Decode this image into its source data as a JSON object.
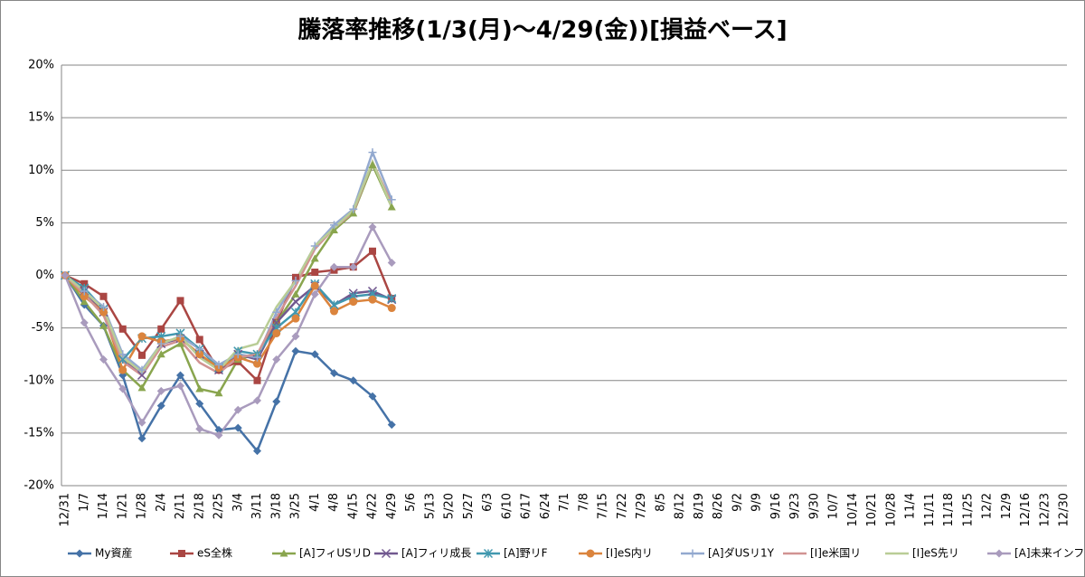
{
  "chart_data": {
    "type": "line",
    "title": "騰落率推移(1/3(月)～4/29(金))[損益ベース]",
    "categories": [
      "12/31",
      "1/7",
      "1/14",
      "1/21",
      "1/28",
      "2/4",
      "2/11",
      "2/18",
      "2/25",
      "3/4",
      "3/11",
      "3/18",
      "3/25",
      "4/1",
      "4/8",
      "4/15",
      "4/22",
      "4/29",
      "5/6",
      "5/13",
      "5/20",
      "5/27",
      "6/3",
      "6/10",
      "6/17",
      "6/24",
      "7/1",
      "7/8",
      "7/15",
      "7/22",
      "7/29",
      "8/5",
      "8/12",
      "8/19",
      "8/26",
      "9/2",
      "9/9",
      "9/16",
      "9/23",
      "9/30",
      "10/7",
      "10/14",
      "10/21",
      "10/28",
      "11/4",
      "11/11",
      "11/18",
      "11/25",
      "12/2",
      "12/9",
      "12/16",
      "12/23",
      "12/30"
    ],
    "ylim": [
      -20,
      20
    ],
    "yticks": [
      {
        "value": -20,
        "label": "-20%"
      },
      {
        "value": -15,
        "label": "-15%"
      },
      {
        "value": -10,
        "label": "-10%"
      },
      {
        "value": -5,
        "label": "-5%"
      },
      {
        "value": 0,
        "label": "0%"
      },
      {
        "value": 5,
        "label": "5%"
      },
      {
        "value": 10,
        "label": "10%"
      },
      {
        "value": 15,
        "label": "15%"
      },
      {
        "value": 20,
        "label": "20%"
      }
    ],
    "grid": true,
    "legend": "bottom",
    "series": [
      {
        "name": "My資産",
        "color": "#4572a7",
        "marker": "diamond",
        "values": [
          0,
          -2.8,
          -4.8,
          -9.5,
          -15.5,
          -12.4,
          -9.5,
          -12.2,
          -14.7,
          -14.5,
          -16.7,
          -12,
          -7.2,
          -7.5,
          -9.3,
          -10,
          -11.5,
          -14.2,
          null,
          null,
          null,
          null,
          null,
          null,
          null,
          null,
          null,
          null,
          null,
          null,
          null,
          null,
          null,
          null,
          null,
          null,
          null,
          null,
          null,
          null,
          null,
          null,
          null,
          null,
          null,
          null,
          null,
          null,
          null,
          null,
          null,
          null,
          null
        ]
      },
      {
        "name": "eS全株",
        "color": "#aa4643",
        "marker": "square",
        "values": [
          0,
          -0.8,
          -2,
          -5.1,
          -7.6,
          -5.1,
          -2.4,
          -6.1,
          -9,
          -8.2,
          -10,
          -4.5,
          -0.2,
          0.3,
          0.5,
          0.8,
          2.3,
          -2.2,
          null,
          null,
          null,
          null,
          null,
          null,
          null,
          null,
          null,
          null,
          null,
          null,
          null,
          null,
          null,
          null,
          null,
          null,
          null,
          null,
          null,
          null,
          null,
          null,
          null,
          null,
          null,
          null,
          null,
          null,
          null,
          null,
          null,
          null,
          null
        ]
      },
      {
        "name": "[A]フィUSリD",
        "color": "#89a54e",
        "marker": "triangle",
        "values": [
          0,
          -2.5,
          -4.8,
          -9,
          -10.7,
          -7.5,
          -6.5,
          -10.8,
          -11.2,
          -8,
          -7.5,
          -4.5,
          -1.8,
          1.6,
          4.3,
          5.9,
          10.5,
          6.5,
          null,
          null,
          null,
          null,
          null,
          null,
          null,
          null,
          null,
          null,
          null,
          null,
          null,
          null,
          null,
          null,
          null,
          null,
          null,
          null,
          null,
          null,
          null,
          null,
          null,
          null,
          null,
          null,
          null,
          null,
          null,
          null,
          null,
          null,
          null
        ]
      },
      {
        "name": "[A]フィリ成長",
        "color": "#71588f",
        "marker": "x",
        "values": [
          0,
          -1.5,
          -3.5,
          -8,
          -9.5,
          -6.5,
          -6,
          -7.5,
          -9,
          -7.5,
          -8,
          -4.5,
          -2.5,
          -1,
          -2.8,
          -1.7,
          -1.5,
          -2.3,
          null,
          null,
          null,
          null,
          null,
          null,
          null,
          null,
          null,
          null,
          null,
          null,
          null,
          null,
          null,
          null,
          null,
          null,
          null,
          null,
          null,
          null,
          null,
          null,
          null,
          null,
          null,
          null,
          null,
          null,
          null,
          null,
          null,
          null,
          null
        ]
      },
      {
        "name": "[A]野リF",
        "color": "#4198af",
        "marker": "star",
        "values": [
          0,
          -1.2,
          -3.2,
          -8,
          -6,
          -5.8,
          -5.5,
          -7,
          -8.8,
          -7.2,
          -7.5,
          -5,
          -3.5,
          -0.8,
          -2.8,
          -2,
          -1.8,
          -2.2,
          null,
          null,
          null,
          null,
          null,
          null,
          null,
          null,
          null,
          null,
          null,
          null,
          null,
          null,
          null,
          null,
          null,
          null,
          null,
          null,
          null,
          null,
          null,
          null,
          null,
          null,
          null,
          null,
          null,
          null,
          null,
          null,
          null,
          null,
          null
        ]
      },
      {
        "name": "[I]eS内リ",
        "color": "#db843d",
        "marker": "circle",
        "values": [
          0,
          -2,
          -3.5,
          -9,
          -5.8,
          -6.3,
          -6,
          -7.5,
          -8.8,
          -7.8,
          -8.4,
          -5.5,
          -4.1,
          -1,
          -3.4,
          -2.5,
          -2.3,
          -3.1,
          null,
          null,
          null,
          null,
          null,
          null,
          null,
          null,
          null,
          null,
          null,
          null,
          null,
          null,
          null,
          null,
          null,
          null,
          null,
          null,
          null,
          null,
          null,
          null,
          null,
          null,
          null,
          null,
          null,
          null,
          null,
          null,
          null,
          null,
          null
        ]
      },
      {
        "name": "[A]ダUSリ1Y",
        "color": "#93a9cf",
        "marker": "plus",
        "values": [
          0,
          -1.5,
          -3,
          -7.5,
          -9,
          -6.5,
          -5.8,
          -7,
          -8.5,
          -7.5,
          -7.8,
          -3.5,
          -0.5,
          2.8,
          4.8,
          6.3,
          11.7,
          7.2,
          null,
          null,
          null,
          null,
          null,
          null,
          null,
          null,
          null,
          null,
          null,
          null,
          null,
          null,
          null,
          null,
          null,
          null,
          null,
          null,
          null,
          null,
          null,
          null,
          null,
          null,
          null,
          null,
          null,
          null,
          null,
          null,
          null,
          null,
          null
        ]
      },
      {
        "name": "[I]e米国リ",
        "color": "#d19392",
        "marker": "none",
        "values": [
          0,
          -1.8,
          -3.8,
          -8.2,
          -9.5,
          -6.8,
          -6.2,
          -8.3,
          -9.3,
          -7.8,
          -7.5,
          -4,
          -1,
          2.5,
          4.5,
          6,
          10.8,
          6.8,
          null,
          null,
          null,
          null,
          null,
          null,
          null,
          null,
          null,
          null,
          null,
          null,
          null,
          null,
          null,
          null,
          null,
          null,
          null,
          null,
          null,
          null,
          null,
          null,
          null,
          null,
          null,
          null,
          null,
          null,
          null,
          null,
          null,
          null,
          null
        ]
      },
      {
        "name": "[I]eS先リ",
        "color": "#b9cd96",
        "marker": "none",
        "values": [
          0,
          -1.5,
          -3.2,
          -7.8,
          -9.2,
          -6.5,
          -5.8,
          -7.8,
          -9,
          -7,
          -6.5,
          -3,
          -0.5,
          2.8,
          4.5,
          6.2,
          10.8,
          6.5,
          null,
          null,
          null,
          null,
          null,
          null,
          null,
          null,
          null,
          null,
          null,
          null,
          null,
          null,
          null,
          null,
          null,
          null,
          null,
          null,
          null,
          null,
          null,
          null,
          null,
          null,
          null,
          null,
          null,
          null,
          null,
          null,
          null,
          null,
          null
        ]
      },
      {
        "name": "[A]未来インフラ",
        "color": "#a99bbd",
        "marker": "diamond",
        "values": [
          0,
          -4.5,
          -8,
          -10.8,
          -14,
          -11,
          -10.5,
          -14.6,
          -15.2,
          -12.8,
          -11.9,
          -8,
          -5.8,
          -1.8,
          0.8,
          0.8,
          4.6,
          1.2,
          null,
          null,
          null,
          null,
          null,
          null,
          null,
          null,
          null,
          null,
          null,
          null,
          null,
          null,
          null,
          null,
          null,
          null,
          null,
          null,
          null,
          null,
          null,
          null,
          null,
          null,
          null,
          null,
          null,
          null,
          null,
          null,
          null,
          null,
          null
        ]
      }
    ]
  }
}
